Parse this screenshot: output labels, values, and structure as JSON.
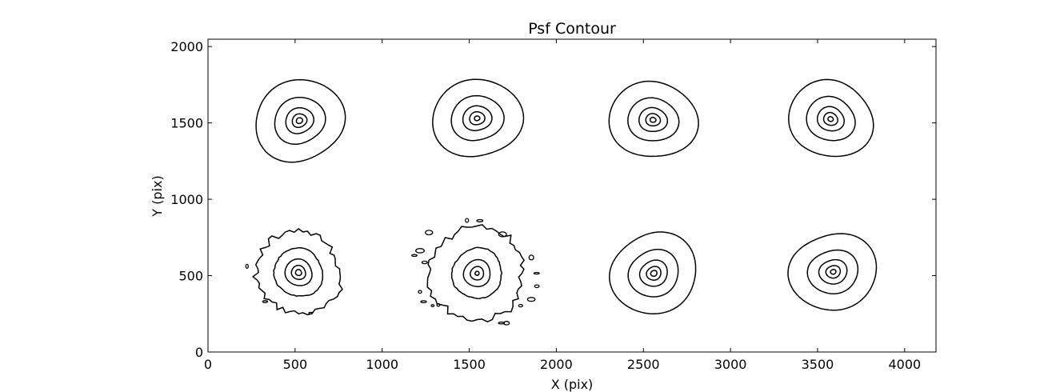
{
  "chart_data": {
    "type": "contour",
    "title": "Psf Contour",
    "xlabel": "X (pix)",
    "ylabel": "Y (pix)",
    "xlim": [
      0,
      4180
    ],
    "ylim": [
      0,
      2048
    ],
    "xticks": [
      0,
      500,
      1000,
      1500,
      2000,
      2500,
      3000,
      3500,
      4000
    ],
    "yticks": [
      0,
      500,
      1000,
      1500,
      2000
    ],
    "grid": false,
    "line_color": "#000000",
    "sources": [
      {
        "x": 525,
        "y": 1515,
        "radii": [
          255,
          145,
          80,
          42,
          18
        ],
        "noisy": false
      },
      {
        "x": 1545,
        "y": 1530,
        "radii": [
          250,
          145,
          80,
          42,
          15
        ],
        "noisy": false
      },
      {
        "x": 2555,
        "y": 1520,
        "radii": [
          245,
          140,
          78,
          40,
          16
        ],
        "noisy": false
      },
      {
        "x": 3575,
        "y": 1525,
        "radii": [
          240,
          138,
          76,
          40,
          15
        ],
        "noisy": false
      },
      {
        "x": 520,
        "y": 520,
        "radii": [
          250,
          145,
          80,
          42,
          18
        ],
        "noisy": true
      },
      {
        "x": 1545,
        "y": 515,
        "radii": [
          280,
          150,
          80,
          40,
          12
        ],
        "noisy": true
      },
      {
        "x": 2560,
        "y": 515,
        "radii": [
          250,
          145,
          80,
          42,
          18
        ],
        "noisy": false
      },
      {
        "x": 3590,
        "y": 525,
        "radii": [
          245,
          140,
          78,
          40,
          15
        ],
        "noisy": false
      }
    ]
  }
}
